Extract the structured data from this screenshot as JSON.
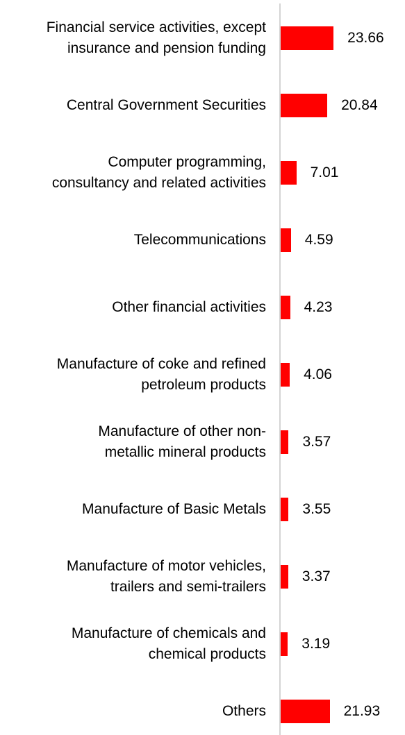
{
  "chart_data": {
    "type": "bar",
    "orientation": "horizontal",
    "categories": [
      "Financial service activities, except\ninsurance and pension funding",
      "Central Government Securities",
      "Computer programming,\nconsultancy and related activities",
      "Telecommunications",
      "Other financial activities",
      "Manufacture of coke and refined\npetroleum products",
      "Manufacture of other non-\nmetallic mineral products",
      "Manufacture of Basic Metals",
      "Manufacture of motor vehicles,\ntrailers and semi-trailers",
      "Manufacture of chemicals and\nchemical products",
      "Others"
    ],
    "values": [
      23.66,
      20.84,
      7.01,
      4.59,
      4.23,
      4.06,
      3.57,
      3.55,
      3.37,
      3.19,
      21.93
    ],
    "value_labels": [
      "23.66",
      "20.84",
      "7.01",
      "4.59",
      "4.23",
      "4.06",
      "3.57",
      "3.55",
      "3.37",
      "3.19",
      "21.93"
    ],
    "bar_color": "#ff0000",
    "axis_color": "#d4d4d4",
    "grid": false,
    "legend": "none"
  }
}
